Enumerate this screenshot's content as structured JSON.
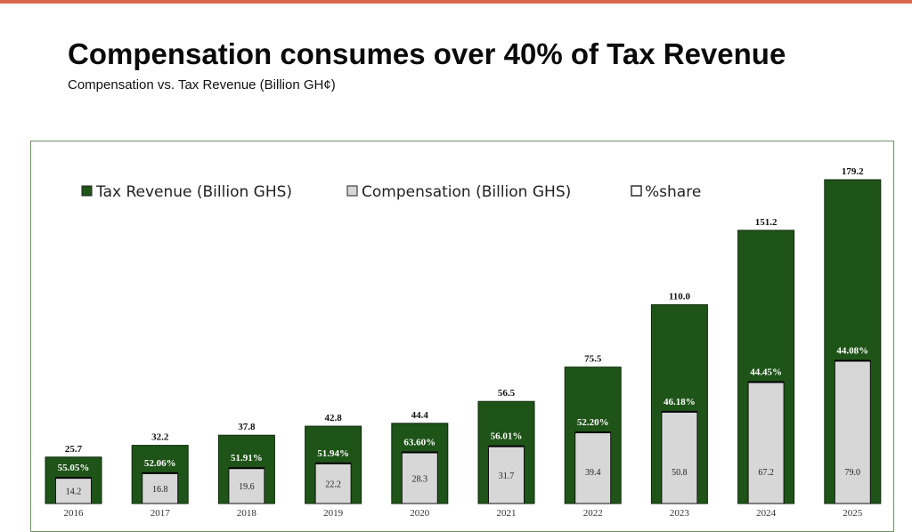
{
  "title": "Compensation consumes over 40% of Tax Revenue",
  "subtitle": "Compensation  vs. Tax Revenue (Billion GH¢)",
  "colors": {
    "top_bar": "#d9694f",
    "tax": "#1f5418",
    "compensation": "#d7d7d7",
    "frame": "#6d8f66"
  },
  "chart_data": {
    "type": "bar",
    "categories": [
      "2016",
      "2017",
      "2018",
      "2019",
      "2020",
      "2021",
      "2022",
      "2023",
      "2024",
      "2025"
    ],
    "series": [
      {
        "name": "Tax Revenue (Billion GHS)",
        "values": [
          25.7,
          32.2,
          37.8,
          42.8,
          44.4,
          56.5,
          75.5,
          110.0,
          151.2,
          179.2
        ],
        "labels": [
          "25.7",
          "32.2",
          "37.8",
          "42.8",
          "44.4",
          "56.5",
          "75.5",
          "110.0",
          "151.2",
          "179.2"
        ]
      },
      {
        "name": "Compensation (Billion GHS)",
        "values": [
          14.2,
          16.8,
          19.6,
          22.2,
          28.3,
          31.7,
          39.4,
          50.8,
          67.2,
          79.0
        ],
        "labels": [
          "14.2",
          "16.8",
          "19.6",
          "22.2",
          "28.3",
          "31.7",
          "39.4",
          "50.8",
          "67.2",
          "79.0"
        ]
      },
      {
        "name": "%share",
        "values": [
          55.05,
          52.06,
          51.91,
          51.94,
          63.6,
          56.01,
          52.2,
          46.18,
          44.45,
          44.08
        ],
        "labels": [
          "55.05%",
          "52.06%",
          "51.91%",
          "51.94%",
          "63.60%",
          "56.01%",
          "52.20%",
          "46.18%",
          "44.45%",
          "44.08%"
        ]
      }
    ],
    "ylim": [
      0,
      180
    ],
    "xlabel": "",
    "ylabel": "",
    "legend_position": "top-left",
    "grid": false
  }
}
